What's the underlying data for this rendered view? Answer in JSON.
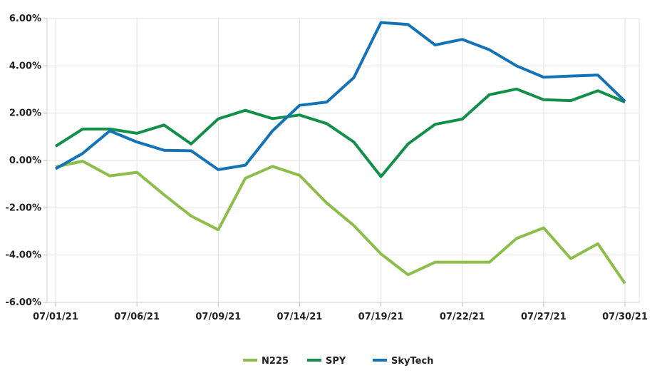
{
  "chart_data": {
    "type": "line",
    "title": "",
    "xlabel": "",
    "ylabel": "",
    "ylim": [
      -6,
      6
    ],
    "y_ticks": [
      6,
      4,
      2,
      0,
      -2,
      -4,
      -6
    ],
    "y_tick_labels": [
      "6.00%",
      "4.00%",
      "2.00%",
      "0.00%",
      "-2.00%",
      "-4.00%",
      "-6.00%"
    ],
    "x": [
      "07/01/21",
      "07/02/21",
      "07/05/21",
      "07/06/21",
      "07/07/21",
      "07/08/21",
      "07/09/21",
      "07/12/21",
      "07/13/21",
      "07/14/21",
      "07/15/21",
      "07/16/21",
      "07/19/21",
      "07/20/21",
      "07/21/21",
      "07/22/21",
      "07/23/21",
      "07/26/21",
      "07/27/21",
      "07/28/21",
      "07/29/21",
      "07/30/21"
    ],
    "x_tick_labels": [
      "07/01/21",
      "07/06/21",
      "07/09/21",
      "07/14/21",
      "07/19/21",
      "07/22/21",
      "07/27/21",
      "07/30/21"
    ],
    "grid": true,
    "legend_position": "bottom",
    "series": [
      {
        "name": "N225",
        "color": "#8dbd4a",
        "values": [
          -0.27,
          -0.03,
          -0.65,
          -0.5,
          -1.45,
          -2.35,
          -2.93,
          -0.75,
          -0.25,
          -0.63,
          -1.8,
          -2.75,
          -3.95,
          -4.83,
          -4.3,
          -4.3,
          -4.3,
          -3.3,
          -2.85,
          -4.15,
          -3.52,
          -5.2
        ]
      },
      {
        "name": "SPY",
        "color": "#12904a",
        "values": [
          0.6,
          1.33,
          1.33,
          1.15,
          1.5,
          0.7,
          1.76,
          2.12,
          1.77,
          1.92,
          1.56,
          0.78,
          -0.68,
          0.7,
          1.53,
          1.75,
          2.78,
          3.02,
          2.57,
          2.53,
          2.95,
          2.47
        ]
      },
      {
        "name": "SkyTech",
        "color": "#1273b8",
        "values": [
          -0.35,
          0.3,
          1.25,
          0.78,
          0.43,
          0.41,
          -0.39,
          -0.2,
          1.25,
          2.33,
          2.47,
          3.5,
          5.83,
          5.75,
          4.88,
          5.12,
          4.68,
          4.0,
          3.52,
          3.57,
          3.61,
          2.5
        ]
      }
    ]
  }
}
